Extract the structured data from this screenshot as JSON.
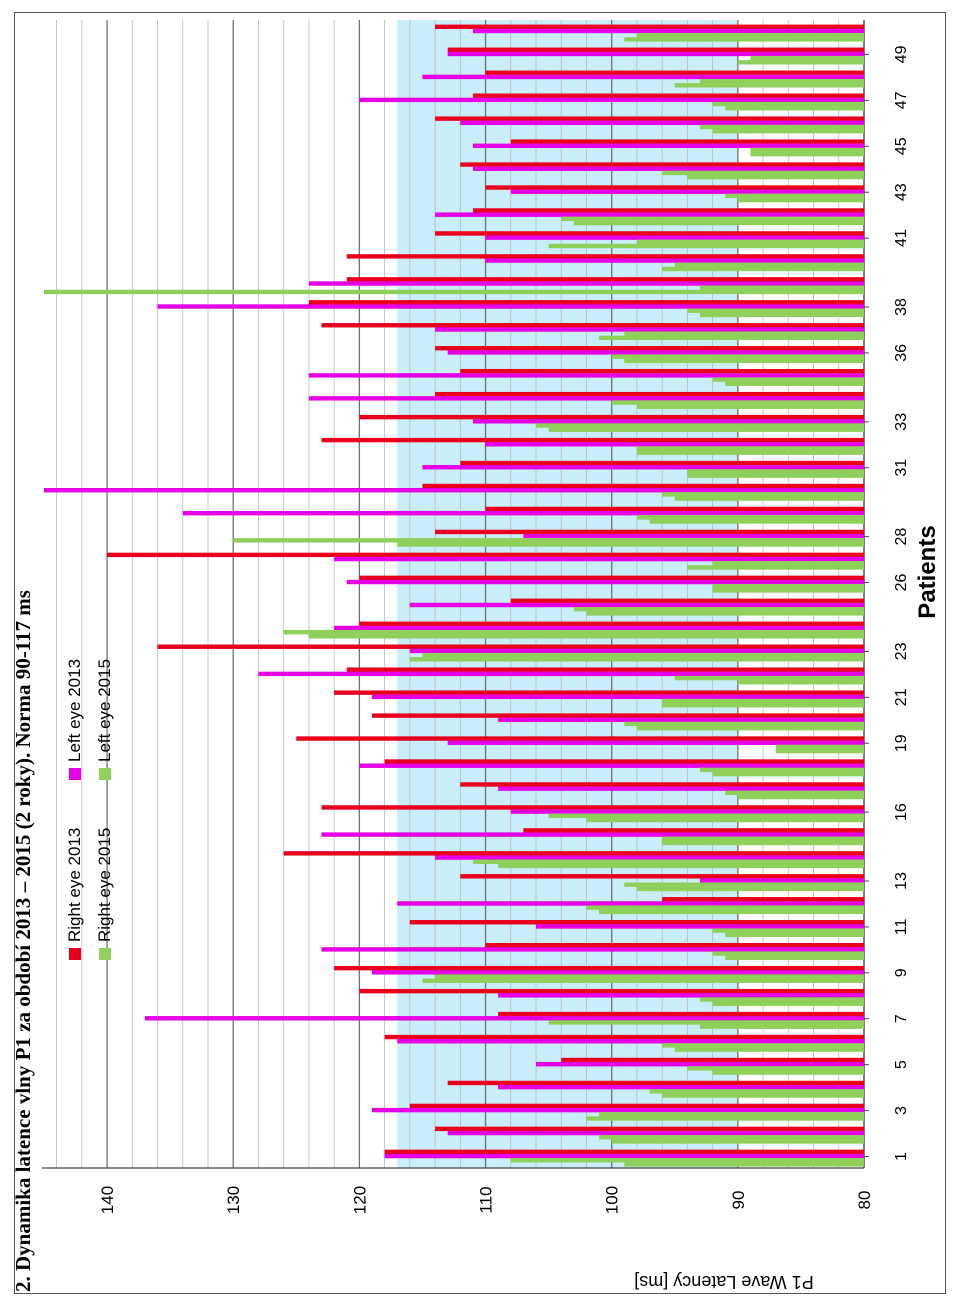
{
  "chart_data": {
    "type": "bar",
    "title": "2. Dynamika latence vlny P1 za období 2013 – 2015 (2 roky). Norma 90-117 ms",
    "xlabel": "Patients",
    "ylabel": "P1 Wave Latency [ms]",
    "ylim": [
      80,
      145
    ],
    "yticks": [
      80,
      90,
      100,
      110,
      120,
      130,
      140
    ],
    "norm_band": [
      90,
      117
    ],
    "grid": true,
    "legend_position": "top-left",
    "categories": [
      1,
      2,
      3,
      4,
      5,
      6,
      7,
      8,
      9,
      10,
      11,
      12,
      13,
      14,
      15,
      16,
      17,
      18,
      19,
      20,
      21,
      22,
      23,
      24,
      25,
      26,
      27,
      28,
      29,
      30,
      31,
      32,
      33,
      34,
      35,
      36,
      37,
      38,
      39,
      40,
      41,
      42,
      43,
      44,
      45,
      46,
      47,
      48,
      49,
      50
    ],
    "xtick_labels": [
      "1",
      "3",
      "5",
      "7",
      "9",
      "11",
      "13",
      "16",
      "19",
      "21",
      "23",
      "26",
      "28",
      "31",
      "33",
      "36",
      "38",
      "41",
      "43",
      "45",
      "47",
      "49"
    ],
    "xtick_categories": [
      1,
      3,
      5,
      7,
      9,
      11,
      13,
      16,
      19,
      21,
      23,
      26,
      28,
      31,
      33,
      36,
      38,
      41,
      43,
      45,
      47,
      49
    ],
    "series": [
      {
        "name": "Right eye 2013",
        "color": "#e8001c",
        "values": [
          118,
          114,
          116,
          113,
          104,
          118,
          109,
          120,
          122,
          110,
          116,
          96,
          112,
          126,
          107,
          123,
          112,
          118,
          125,
          119,
          122,
          121,
          136,
          120,
          108,
          120,
          140,
          114,
          110,
          115,
          112,
          123,
          120,
          114,
          112,
          114,
          123,
          124,
          121,
          121,
          114,
          111,
          110,
          112,
          108,
          114,
          111,
          110,
          113,
          114
        ]
      },
      {
        "name": "Left eye 2013",
        "color": "#e600e6",
        "values": [
          118,
          113,
          119,
          109,
          106,
          117,
          137,
          109,
          119,
          123,
          106,
          117,
          93,
          114,
          123,
          108,
          109,
          120,
          113,
          109,
          119,
          128,
          116,
          122,
          116,
          121,
          122,
          107,
          134,
          145,
          115,
          110,
          111,
          124,
          124,
          113,
          114,
          136,
          124,
          110,
          110,
          114,
          108,
          111,
          111,
          112,
          120,
          115,
          113,
          111
        ]
      },
      {
        "name": "Right eye 2015",
        "color": "#8fd05a",
        "values": [
          108,
          101,
          101,
          97,
          94,
          96,
          105,
          93,
          114,
          92,
          92,
          102,
          99,
          111,
          96,
          105,
          91,
          93,
          87,
          99,
          96,
          95,
          115,
          126,
          103,
          92,
          92,
          130,
          98,
          96,
          94,
          98,
          106,
          100,
          92,
          100,
          99,
          94,
          93,
          95,
          98,
          104,
          91,
          96,
          89,
          93,
          92,
          93,
          89,
          98
        ]
      },
      {
        "name": "Left eye 2015",
        "color": "#8fd05a",
        "values": [
          99,
          100,
          102,
          96,
          92,
          95,
          93,
          92,
          115,
          91,
          91,
          101,
          98,
          109,
          96,
          102,
          90,
          92,
          87,
          98,
          96,
          90,
          116,
          124,
          102,
          92,
          94,
          117,
          97,
          95,
          94,
          98,
          105,
          98,
          91,
          99,
          101,
          93,
          145,
          96,
          105,
          103,
          90,
          94,
          89,
          92,
          91,
          95,
          90,
          99
        ]
      }
    ]
  }
}
